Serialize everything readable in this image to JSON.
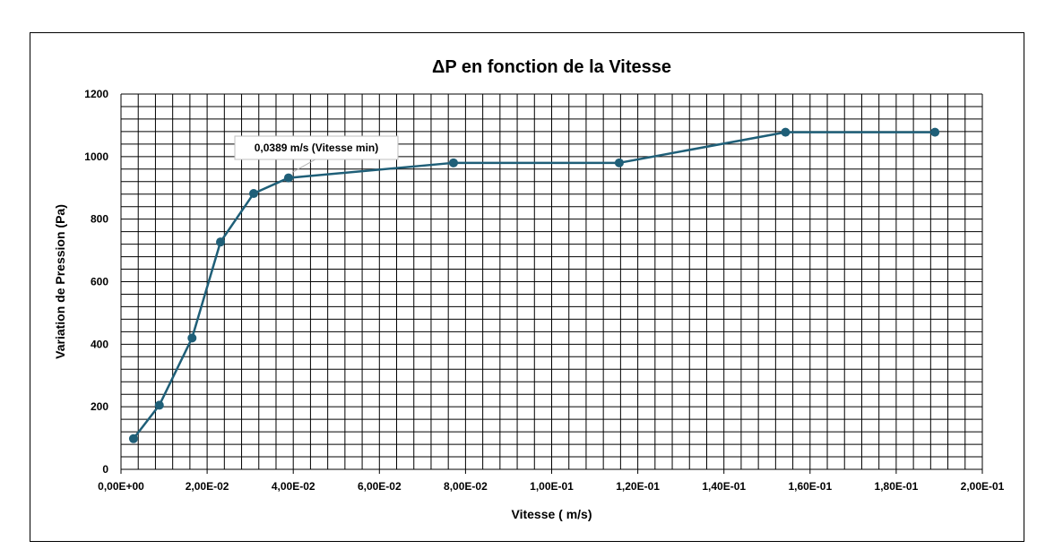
{
  "chart_data": {
    "type": "line",
    "title": "ΔP en fonction de la Vitesse",
    "xlabel": "Vitesse ( m/s)",
    "ylabel": "Variation de Pression (Pa)",
    "xlim": [
      0,
      0.2
    ],
    "ylim": [
      0,
      1200
    ],
    "x_ticks": [
      0,
      0.02,
      0.04,
      0.06,
      0.08,
      0.1,
      0.12,
      0.14,
      0.16,
      0.18,
      0.2
    ],
    "x_tick_labels": [
      "0,00E+00",
      "2,00E-02",
      "4,00E-02",
      "6,00E-02",
      "8,00E-02",
      "1,00E-01",
      "1,20E-01",
      "1,40E-01",
      "1,60E-01",
      "1,80E-01",
      "2,00E-01"
    ],
    "y_ticks": [
      0,
      200,
      400,
      600,
      800,
      1000,
      1200
    ],
    "y_tick_labels": [
      "0",
      "200",
      "400",
      "600",
      "800",
      "1000",
      "1200"
    ],
    "grid": true,
    "legend": "none",
    "series": [
      {
        "color": "#1f5f78",
        "points": [
          {
            "x": 0.0029,
            "y": 98
          },
          {
            "x": 0.0089,
            "y": 205
          },
          {
            "x": 0.0165,
            "y": 420
          },
          {
            "x": 0.0231,
            "y": 727
          },
          {
            "x": 0.0308,
            "y": 882
          },
          {
            "x": 0.0389,
            "y": 932
          },
          {
            "x": 0.0772,
            "y": 980
          },
          {
            "x": 0.1157,
            "y": 980
          },
          {
            "x": 0.1543,
            "y": 1078
          },
          {
            "x": 0.189,
            "y": 1078
          }
        ]
      }
    ],
    "annotations": [
      {
        "text": "0,0389 m/s (Vitesse min)",
        "x": 0.0389,
        "y": 932
      }
    ]
  }
}
